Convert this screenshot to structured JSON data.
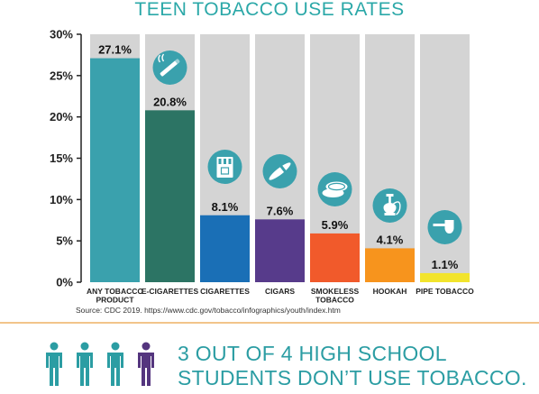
{
  "chart_data": {
    "type": "bar",
    "title": "TEEN TOBACCO USE RATES",
    "categories": [
      "ANY TOBACCO PRODUCT",
      "E-CIGARETTES",
      "CIGARETTES",
      "CIGARS",
      "SMOKELESS TOBACCO",
      "HOOKAH",
      "PIPE TOBACCO"
    ],
    "category_lines": [
      [
        "ANY TOBACCO",
        "PRODUCT"
      ],
      [
        "E-CIGARETTES"
      ],
      [
        "CIGARETTES"
      ],
      [
        "CIGARS"
      ],
      [
        "SMOKELESS",
        "TOBACCO"
      ],
      [
        "HOOKAH"
      ],
      [
        "PIPE TOBACCO"
      ]
    ],
    "values": [
      27.1,
      20.8,
      8.1,
      7.6,
      5.9,
      4.1,
      1.1
    ],
    "value_labels": [
      "27.1%",
      "20.8%",
      "8.1%",
      "7.6%",
      "5.9%",
      "4.1%",
      "1.1%"
    ],
    "ylim": [
      0,
      30
    ],
    "yticks": [
      0,
      5,
      10,
      15,
      20,
      25,
      30
    ],
    "ytick_labels": [
      "0%",
      "5%",
      "10%",
      "15%",
      "20%",
      "25%",
      "30%"
    ],
    "bar_colors": [
      "#3aa1ad",
      "#2c7464",
      "#1a6fb6",
      "#573b8b",
      "#f15a2b",
      "#f7941d",
      "#f2e42c"
    ],
    "background_bar_color": "#d4d4d4",
    "icons": [
      "none",
      "e-cigarette-icon",
      "cigarette-pack-icon",
      "cigar-icon",
      "smokeless-tin-icon",
      "hookah-icon",
      "pipe-icon"
    ],
    "icon_color": "#3aa1ad",
    "grid": false,
    "legend": "none"
  },
  "source": "Source: CDC 2019. https://www.cdc.gov/tobacco/infographics/youth/index.htm",
  "message": {
    "line1": "3 OUT OF 4 HIGH SCHOOL",
    "line2": "STUDENTS DON’T USE TOBACCO.",
    "color": "#2b9da3"
  },
  "people": {
    "total": 4,
    "highlighted": 1,
    "color": "#2b9da3",
    "highlight_color": "#54357e"
  }
}
